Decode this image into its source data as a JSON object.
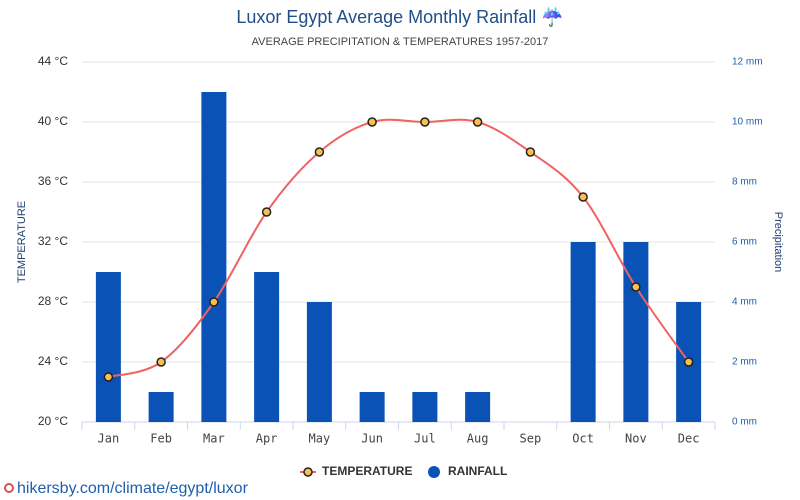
{
  "chart_data": {
    "type": "bar_line",
    "title": "Luxor Egypt Average Monthly Rainfall ☔",
    "subtitle": "AVERAGE PRECIPITATION & TEMPERATURES 1957-2017",
    "y_label": "TEMPERATURE",
    "y2_label": "Precipitation",
    "source": "hikersby.com/climate/egypt/luxor",
    "categories": [
      "Jan",
      "Feb",
      "Mar",
      "Apr",
      "May",
      "Jun",
      "Jul",
      "Aug",
      "Sep",
      "Oct",
      "Nov",
      "Dec"
    ],
    "series": [
      {
        "name": "TEMPERATURE",
        "type": "line",
        "axis": "y",
        "color": "#f06262",
        "marker_color": "#f9bf4f",
        "values": [
          23,
          24,
          28,
          34,
          38,
          40,
          40,
          40,
          38,
          35,
          29,
          24
        ]
      },
      {
        "name": "RAINFALL",
        "type": "bar",
        "axis": "y2",
        "color": "#0a52b5",
        "values": [
          5,
          1,
          11,
          5,
          4,
          1,
          1,
          1,
          0,
          6,
          6,
          4
        ]
      }
    ],
    "ylim": [
      20,
      44
    ],
    "yticks": [
      {
        "value": 20,
        "label": "20 °C"
      },
      {
        "value": 24,
        "label": "24 °C"
      },
      {
        "value": 28,
        "label": "28 °C"
      },
      {
        "value": 32,
        "label": "32 °C"
      },
      {
        "value": 36,
        "label": "36 °C"
      },
      {
        "value": 40,
        "label": "40 °C"
      },
      {
        "value": 44,
        "label": "44 °C"
      }
    ],
    "y2lim": [
      0,
      12
    ],
    "y2ticks": [
      {
        "value": 0,
        "label": "0 mm"
      },
      {
        "value": 2,
        "label": "2 mm"
      },
      {
        "value": 4,
        "label": "4 mm"
      },
      {
        "value": 6,
        "label": "6 mm"
      },
      {
        "value": 8,
        "label": "8 mm"
      },
      {
        "value": 10,
        "label": "10 mm"
      },
      {
        "value": 12,
        "label": "12 mm"
      }
    ],
    "grid": true
  }
}
